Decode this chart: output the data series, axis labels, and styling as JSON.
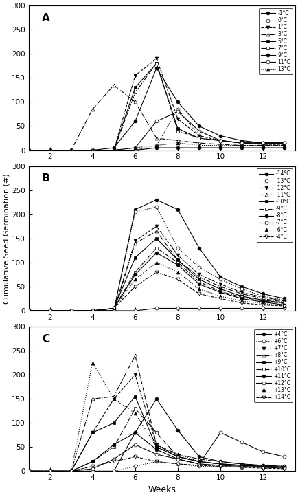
{
  "weeks": [
    1,
    2,
    3,
    4,
    5,
    6,
    7,
    8,
    9,
    10,
    11,
    12,
    13
  ],
  "panel_A": {
    "label": "A",
    "series": [
      {
        "temp": "-1°C",
        "ls": "-",
        "mk": "o",
        "mfc": "black",
        "values": [
          0,
          0,
          0,
          0,
          0,
          0,
          5,
          5,
          5,
          5,
          5,
          5,
          5
        ]
      },
      {
        "temp": "0°C",
        "ls": ":",
        "mk": "o",
        "mfc": "white",
        "values": [
          0,
          0,
          0,
          0,
          0,
          0,
          10,
          85,
          30,
          20,
          15,
          15,
          15
        ]
      },
      {
        "temp": "1°C",
        "ls": "--",
        "mk": "v",
        "mfc": "black",
        "values": [
          0,
          0,
          0,
          0,
          0,
          155,
          190,
          65,
          30,
          20,
          15,
          12,
          12
        ]
      },
      {
        "temp": "3°C",
        "ls": "-.",
        "mk": "^",
        "mfc": "white",
        "values": [
          0,
          0,
          0,
          85,
          135,
          100,
          25,
          20,
          15,
          12,
          10,
          10,
          10
        ]
      },
      {
        "temp": "5°C",
        "ls": "-",
        "mk": "s",
        "mfc": "black",
        "values": [
          0,
          0,
          0,
          0,
          0,
          130,
          180,
          45,
          25,
          20,
          15,
          15,
          15
        ]
      },
      {
        "temp": "7°C",
        "ls": "-.",
        "mk": "s",
        "mfc": "white",
        "values": [
          0,
          0,
          0,
          0,
          0,
          120,
          180,
          40,
          25,
          20,
          15,
          15,
          15
        ]
      },
      {
        "temp": "9°C",
        "ls": "-",
        "mk": "o",
        "mfc": "black",
        "values": [
          0,
          0,
          0,
          0,
          5,
          60,
          170,
          100,
          50,
          30,
          20,
          15,
          15
        ]
      },
      {
        "temp": "11°C",
        "ls": "-",
        "mk": "o",
        "mfc": "white",
        "values": [
          0,
          0,
          0,
          0,
          0,
          5,
          60,
          80,
          40,
          20,
          15,
          15,
          15
        ]
      },
      {
        "temp": "13°C",
        "ls": ":",
        "mk": "^",
        "mfc": "black",
        "values": [
          0,
          0,
          0,
          0,
          0,
          5,
          10,
          15,
          10,
          10,
          10,
          10,
          10
        ]
      }
    ]
  },
  "panel_B": {
    "label": "B",
    "series": [
      {
        "temp": "-14°C",
        "ls": "-",
        "mk": "o",
        "mfc": "black",
        "values": [
          0,
          0,
          0,
          0,
          0,
          210,
          230,
          210,
          130,
          70,
          50,
          35,
          25
        ]
      },
      {
        "temp": "-13°C",
        "ls": ":",
        "mk": "o",
        "mfc": "white",
        "values": [
          0,
          0,
          0,
          0,
          0,
          205,
          215,
          130,
          90,
          65,
          45,
          30,
          22
        ]
      },
      {
        "temp": "-12°C",
        "ls": "--",
        "mk": "v",
        "mfc": "black",
        "values": [
          0,
          0,
          0,
          0,
          0,
          145,
          175,
          115,
          75,
          55,
          38,
          28,
          20
        ]
      },
      {
        "temp": "-11°C",
        "ls": "-.",
        "mk": "^",
        "mfc": "white",
        "values": [
          0,
          0,
          0,
          0,
          0,
          140,
          165,
          105,
          70,
          50,
          35,
          25,
          18
        ]
      },
      {
        "temp": "-10°C",
        "ls": "-",
        "mk": "s",
        "mfc": "black",
        "values": [
          0,
          0,
          0,
          0,
          5,
          110,
          150,
          105,
          65,
          45,
          30,
          22,
          16
        ]
      },
      {
        "temp": "-9°C",
        "ls": "-.",
        "mk": "s",
        "mfc": "white",
        "values": [
          0,
          0,
          0,
          0,
          5,
          80,
          130,
          100,
          60,
          40,
          28,
          20,
          15
        ]
      },
      {
        "temp": "-8°C",
        "ls": "-",
        "mk": "o",
        "mfc": "black",
        "values": [
          0,
          0,
          0,
          0,
          5,
          75,
          120,
          95,
          55,
          38,
          25,
          18,
          12
        ]
      },
      {
        "temp": "-7°C",
        "ls": "-",
        "mk": "o",
        "mfc": "white",
        "values": [
          0,
          0,
          0,
          0,
          0,
          0,
          5,
          5,
          5,
          5,
          5,
          5,
          5
        ]
      },
      {
        "temp": "-6°C",
        "ls": ":",
        "mk": "^",
        "mfc": "black",
        "values": [
          0,
          0,
          0,
          0,
          5,
          65,
          100,
          80,
          45,
          30,
          20,
          15,
          10
        ]
      },
      {
        "temp": "-4°C",
        "ls": "--",
        "mk": "v",
        "mfc": "white",
        "values": [
          0,
          0,
          0,
          0,
          5,
          50,
          80,
          65,
          35,
          25,
          16,
          12,
          10
        ]
      }
    ]
  },
  "panel_C": {
    "label": "C",
    "series": [
      {
        "temp": "+4°C",
        "ls": "-",
        "mk": "o",
        "mfc": "black",
        "values": [
          0,
          0,
          0,
          0,
          0,
          80,
          150,
          85,
          30,
          20,
          15,
          12,
          10
        ]
      },
      {
        "temp": "+6°C",
        "ls": ":",
        "mk": "o",
        "mfc": "white",
        "values": [
          0,
          0,
          0,
          0,
          0,
          10,
          20,
          15,
          10,
          10,
          8,
          8,
          8
        ]
      },
      {
        "temp": "+7°C",
        "ls": "--",
        "mk": "v",
        "mfc": "black",
        "values": [
          0,
          0,
          0,
          80,
          150,
          200,
          55,
          30,
          20,
          15,
          12,
          10,
          8
        ]
      },
      {
        "temp": "+8°C",
        "ls": "-.",
        "mk": "^",
        "mfc": "white",
        "values": [
          0,
          0,
          0,
          150,
          155,
          240,
          55,
          35,
          25,
          20,
          15,
          12,
          10
        ]
      },
      {
        "temp": "+9°C",
        "ls": "-",
        "mk": "s",
        "mfc": "black",
        "values": [
          0,
          0,
          0,
          80,
          100,
          155,
          50,
          30,
          20,
          15,
          12,
          10,
          8
        ]
      },
      {
        "temp": "+10°C",
        "ls": "-.",
        "mk": "s",
        "mfc": "white",
        "values": [
          0,
          0,
          0,
          20,
          50,
          130,
          80,
          30,
          20,
          15,
          12,
          10,
          8
        ]
      },
      {
        "temp": "+11°C",
        "ls": "-",
        "mk": "o",
        "mfc": "black",
        "values": [
          0,
          0,
          0,
          20,
          55,
          80,
          45,
          25,
          15,
          12,
          10,
          8,
          6
        ]
      },
      {
        "temp": "+12°C",
        "ls": "-",
        "mk": "o",
        "mfc": "white",
        "values": [
          0,
          0,
          0,
          5,
          25,
          55,
          35,
          25,
          15,
          80,
          60,
          40,
          30
        ]
      },
      {
        "temp": "+13°C",
        "ls": ":",
        "mk": "^",
        "mfc": "black",
        "values": [
          0,
          0,
          0,
          225,
          150,
          120,
          50,
          35,
          20,
          15,
          12,
          10,
          8
        ]
      },
      {
        "temp": "+14°C",
        "ls": "--",
        "mk": "v",
        "mfc": "white",
        "values": [
          0,
          0,
          0,
          10,
          20,
          30,
          20,
          15,
          12,
          10,
          8,
          6,
          5
        ]
      }
    ]
  },
  "ylabel": "Cumulative Seed Germination (#)",
  "xlabel": "Weeks",
  "ylim": [
    0,
    300
  ],
  "yticks": [
    0,
    50,
    100,
    150,
    200,
    250,
    300
  ],
  "xticks": [
    2,
    4,
    6,
    8,
    10,
    12
  ],
  "xlim": [
    1,
    13.5
  ]
}
